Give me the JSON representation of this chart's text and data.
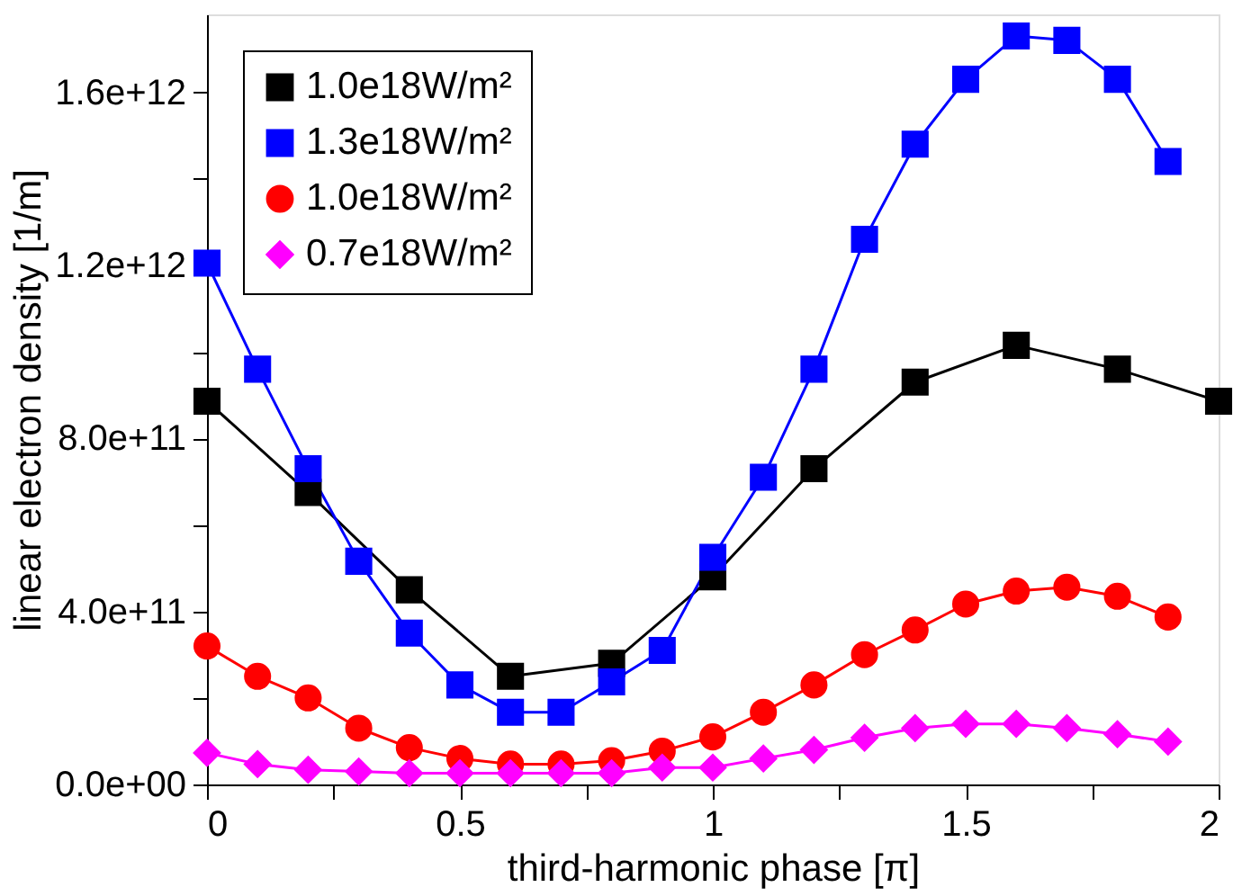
{
  "chart_data": {
    "type": "line",
    "xlabel": "third-harmonic phase [π]",
    "ylabel": "linear electron density [1/m]",
    "xlim": [
      0,
      2
    ],
    "xticks": [
      0,
      {
        "value": 0.25,
        "label": null
      },
      0.5,
      {
        "value": 0.75,
        "label": null
      },
      1,
      {
        "value": 1.25,
        "label": null
      },
      1.5,
      {
        "value": 1.75,
        "label": null
      },
      2
    ],
    "ylim": [
      0,
      1780000000000.0
    ],
    "yticks": [
      {
        "value": 0,
        "label": "0.0e+00"
      },
      {
        "value": 200000000000.0,
        "label": null
      },
      {
        "value": 400000000000.0,
        "label": "4.0e+11"
      },
      {
        "value": 600000000000.0,
        "label": null
      },
      {
        "value": 800000000000.0,
        "label": "8.0e+11"
      },
      {
        "value": 1000000000000.0,
        "label": null
      },
      {
        "value": 1200000000000.0,
        "label": "1.2e+12"
      },
      {
        "value": 1400000000000.0,
        "label": null
      },
      {
        "value": 1600000000000.0,
        "label": "1.6e+12"
      }
    ],
    "grid": false,
    "legend": "top left",
    "line_style": "solid",
    "series": [
      {
        "name": "1.0e18W/m²",
        "color": "#000000",
        "marker": "square",
        "x": [
          0,
          0.2,
          0.4,
          0.6,
          0.8,
          1.0,
          1.2,
          1.4,
          1.6,
          1.8,
          2.0
        ],
        "values": [
          886000000000.0,
          675000000000.0,
          450000000000.0,
          250000000000.0,
          280000000000.0,
          480000000000.0,
          730000000000.0,
          930000000000.0,
          1015000000000.0,
          960000000000.0,
          886000000000.0
        ]
      },
      {
        "name": "1.3e18W/m²",
        "color": "#0000ff",
        "marker": "square",
        "x": [
          0,
          0.1,
          0.2,
          0.3,
          0.4,
          0.5,
          0.6,
          0.7,
          0.8,
          0.9,
          1.0,
          1.1,
          1.2,
          1.3,
          1.4,
          1.5,
          1.6,
          1.7,
          1.8,
          1.9
        ],
        "values": [
          1205000000000.0,
          960000000000.0,
          730000000000.0,
          516000000000.0,
          350000000000.0,
          230000000000.0,
          167000000000.0,
          167000000000.0,
          237000000000.0,
          310000000000.0,
          525000000000.0,
          710000000000.0,
          960000000000.0,
          1260000000000.0,
          1480000000000.0,
          1630000000000.0,
          1730000000000.0,
          1720000000000.0,
          1630000000000.0,
          1440000000000.0
        ]
      },
      {
        "name": "1.0e18W/m²",
        "color": "#ff0000",
        "marker": "circle",
        "x": [
          0,
          0.1,
          0.2,
          0.3,
          0.4,
          0.5,
          0.6,
          0.7,
          0.8,
          0.9,
          1.0,
          1.1,
          1.2,
          1.3,
          1.4,
          1.5,
          1.6,
          1.7,
          1.8,
          1.9
        ],
        "values": [
          320000000000.0,
          250000000000.0,
          200000000000.0,
          130000000000.0,
          85000000000.0,
          60000000000.0,
          47000000000.0,
          47000000000.0,
          55000000000.0,
          77000000000.0,
          110000000000.0,
          167000000000.0,
          230000000000.0,
          300000000000.0,
          357000000000.0,
          417000000000.0,
          447000000000.0,
          456000000000.0,
          435000000000.0,
          387000000000.0
        ]
      },
      {
        "name": "0.7e18W/m²",
        "color": "#ff00ff",
        "marker": "diamond",
        "x": [
          0,
          0.1,
          0.2,
          0.3,
          0.4,
          0.5,
          0.6,
          0.7,
          0.8,
          0.9,
          1.0,
          1.1,
          1.2,
          1.3,
          1.4,
          1.5,
          1.6,
          1.7,
          1.8,
          1.9
        ],
        "values": [
          73000000000.0,
          47000000000.0,
          34000000000.0,
          30000000000.0,
          26000000000.0,
          26000000000.0,
          26000000000.0,
          26000000000.0,
          26000000000.0,
          39000000000.0,
          39000000000.0,
          60000000000.0,
          80000000000.0,
          108000000000.0,
          130000000000.0,
          140000000000.0,
          140000000000.0,
          130000000000.0,
          116000000000.0,
          99000000000.0
        ]
      }
    ]
  }
}
